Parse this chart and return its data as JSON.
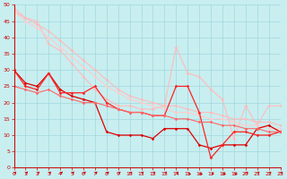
{
  "xlim": [
    0,
    23
  ],
  "ylim": [
    0,
    50
  ],
  "yticks": [
    0,
    5,
    10,
    15,
    20,
    25,
    30,
    35,
    40,
    45,
    50
  ],
  "xticks": [
    0,
    1,
    2,
    3,
    4,
    5,
    6,
    7,
    8,
    9,
    10,
    11,
    12,
    13,
    14,
    15,
    16,
    17,
    18,
    19,
    20,
    21,
    22,
    23
  ],
  "bg_color": "#c8eef0",
  "grid_color": "#a0d8dc",
  "series": [
    {
      "x": [
        0,
        1,
        2,
        3,
        4,
        5,
        6,
        7,
        8,
        9,
        10,
        11,
        12,
        13,
        14,
        15,
        16,
        17,
        18,
        19,
        20,
        21,
        22,
        23
      ],
      "y": [
        49,
        46,
        45,
        38,
        36,
        32,
        28,
        24,
        21,
        19,
        19,
        18,
        18,
        19,
        37,
        29,
        28,
        24,
        21,
        9,
        19,
        13,
        19,
        19
      ],
      "color": "#ffbbbb",
      "lw": 0.8,
      "marker": "D",
      "ms": 1.8
    },
    {
      "x": [
        0,
        1,
        2,
        3,
        4,
        5,
        6,
        7,
        8,
        9,
        10,
        11,
        12,
        13,
        14,
        15,
        16,
        17,
        18,
        19,
        20,
        21,
        22,
        23
      ],
      "y": [
        48,
        46,
        44,
        42,
        39,
        36,
        33,
        30,
        27,
        24,
        22,
        21,
        20,
        19,
        19,
        18,
        17,
        17,
        16,
        15,
        15,
        14,
        14,
        13
      ],
      "color": "#ffbbbb",
      "lw": 0.8,
      "marker": "D",
      "ms": 1.8
    },
    {
      "x": [
        0,
        1,
        2,
        3,
        4,
        5,
        6,
        7,
        8,
        9,
        10,
        11,
        12,
        13,
        14,
        15,
        16,
        17,
        18,
        19,
        20,
        21,
        22,
        23
      ],
      "y": [
        48,
        45,
        43,
        40,
        37,
        34,
        31,
        28,
        25,
        23,
        21,
        20,
        19,
        18,
        17,
        17,
        16,
        15,
        15,
        14,
        13,
        13,
        12,
        12
      ],
      "color": "#ffcccc",
      "lw": 0.8,
      "marker": "D",
      "ms": 1.8
    },
    {
      "x": [
        0,
        1,
        2,
        3,
        4,
        5,
        6,
        7,
        8,
        9,
        10,
        11,
        12,
        13,
        14,
        15,
        16,
        17,
        18,
        19,
        20,
        21,
        22,
        23
      ],
      "y": [
        30,
        26,
        25,
        29,
        24,
        22,
        21,
        20,
        11,
        10,
        10,
        10,
        9,
        12,
        12,
        12,
        7,
        6,
        7,
        7,
        7,
        12,
        13,
        11
      ],
      "color": "#dd0000",
      "lw": 0.9,
      "marker": "D",
      "ms": 1.8
    },
    {
      "x": [
        0,
        1,
        2,
        3,
        4,
        5,
        6,
        7,
        8,
        9,
        10,
        11,
        12,
        13,
        14,
        15,
        16,
        17,
        18,
        19,
        20,
        21,
        22,
        23
      ],
      "y": [
        30,
        25,
        24,
        29,
        23,
        23,
        23,
        25,
        20,
        18,
        17,
        17,
        16,
        16,
        25,
        25,
        17,
        3,
        7,
        11,
        11,
        10,
        10,
        11
      ],
      "color": "#ff2222",
      "lw": 0.9,
      "marker": "D",
      "ms": 1.8
    },
    {
      "x": [
        0,
        1,
        2,
        3,
        4,
        5,
        6,
        7,
        8,
        9,
        10,
        11,
        12,
        13,
        14,
        15,
        16,
        17,
        18,
        19,
        20,
        21,
        22,
        23
      ],
      "y": [
        25,
        24,
        23,
        24,
        22,
        21,
        20,
        20,
        19,
        18,
        17,
        17,
        16,
        16,
        15,
        15,
        14,
        14,
        13,
        13,
        12,
        12,
        11,
        11
      ],
      "color": "#ff6666",
      "lw": 0.8,
      "marker": "D",
      "ms": 1.8
    }
  ],
  "xlabel_color": "#cc0000",
  "xlabel_fontsize": 7,
  "tick_fontsize": 4.5,
  "arrow_angles": [
    45,
    45,
    45,
    45,
    45,
    45,
    45,
    45,
    45,
    45,
    45,
    45,
    45,
    45,
    45,
    0,
    0,
    0,
    0,
    0,
    45,
    45,
    45,
    45
  ]
}
